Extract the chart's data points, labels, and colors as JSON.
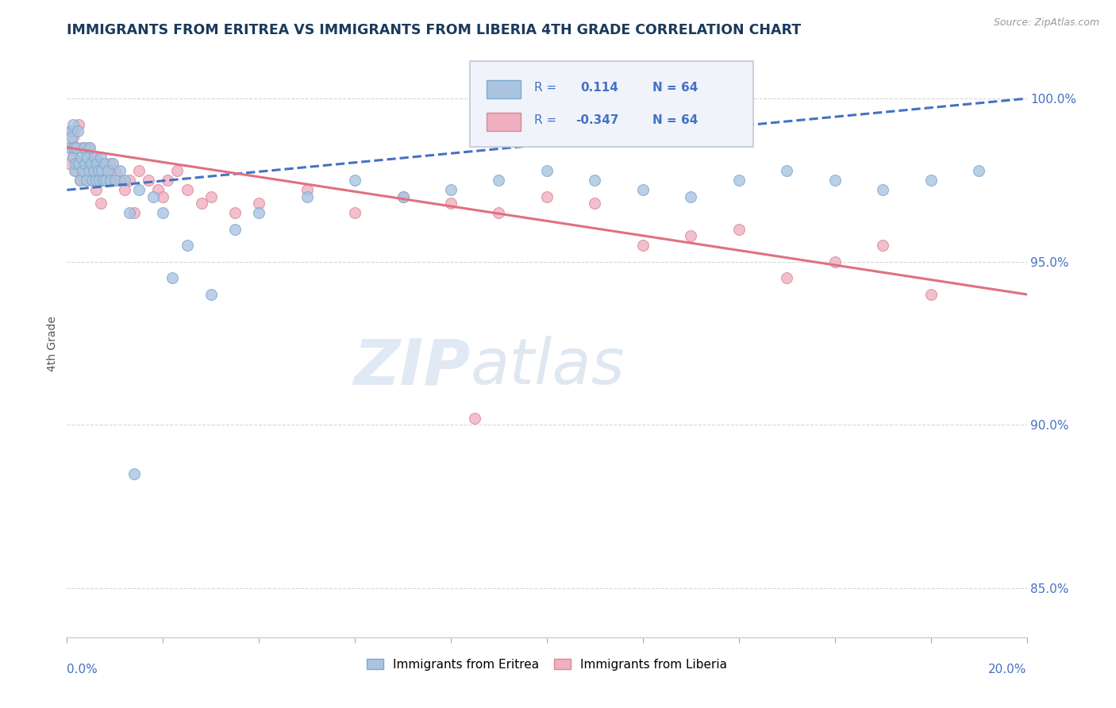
{
  "title": "IMMIGRANTS FROM ERITREA VS IMMIGRANTS FROM LIBERIA 4TH GRADE CORRELATION CHART",
  "source": "Source: ZipAtlas.com",
  "ylabel": "4th Grade",
  "xlim": [
    0.0,
    20.0
  ],
  "ylim": [
    83.5,
    101.5
  ],
  "yticks": [
    85.0,
    90.0,
    95.0,
    100.0
  ],
  "eritrea_color": "#aac4e0",
  "eritrea_edge": "#7aaad0",
  "liberia_color": "#f0b0c0",
  "liberia_edge": "#d88898",
  "trendline_eritrea_color": "#4472c4",
  "trendline_liberia_color": "#e07080",
  "background_color": "#ffffff",
  "grid_color": "#d8d8d8",
  "title_color": "#1a3a5c",
  "axis_label_color": "#4472c4",
  "legend_box_color": "#e8eef8",
  "legend_border_color": "#c0c8d8",
  "eritrea_scatter_x": [
    0.05,
    0.08,
    0.1,
    0.12,
    0.13,
    0.15,
    0.16,
    0.18,
    0.2,
    0.22,
    0.25,
    0.27,
    0.3,
    0.32,
    0.35,
    0.38,
    0.4,
    0.42,
    0.45,
    0.48,
    0.5,
    0.52,
    0.55,
    0.58,
    0.6,
    0.62,
    0.65,
    0.68,
    0.7,
    0.72,
    0.75,
    0.78,
    0.8,
    0.85,
    0.9,
    0.95,
    1.0,
    1.1,
    1.2,
    1.3,
    1.5,
    1.8,
    2.0,
    2.2,
    2.5,
    3.0,
    3.5,
    4.0,
    5.0,
    6.0,
    7.0,
    8.0,
    9.0,
    10.0,
    11.0,
    12.0,
    13.0,
    14.0,
    15.0,
    16.0,
    17.0,
    18.0,
    19.0,
    1.4
  ],
  "eritrea_scatter_y": [
    98.5,
    99.0,
    98.8,
    98.2,
    99.2,
    98.5,
    97.8,
    98.0,
    98.5,
    99.0,
    98.0,
    97.5,
    98.2,
    97.8,
    98.5,
    98.0,
    97.5,
    98.2,
    97.8,
    98.5,
    98.0,
    97.5,
    97.8,
    98.2,
    97.5,
    98.0,
    97.8,
    97.5,
    98.2,
    97.8,
    97.5,
    98.0,
    97.5,
    97.8,
    97.5,
    98.0,
    97.5,
    97.8,
    97.5,
    96.5,
    97.2,
    97.0,
    96.5,
    94.5,
    95.5,
    94.0,
    96.0,
    96.5,
    97.0,
    97.5,
    97.0,
    97.2,
    97.5,
    97.8,
    97.5,
    97.2,
    97.0,
    97.5,
    97.8,
    97.5,
    97.2,
    97.5,
    97.8,
    88.5
  ],
  "liberia_scatter_x": [
    0.05,
    0.08,
    0.1,
    0.12,
    0.13,
    0.15,
    0.16,
    0.18,
    0.2,
    0.22,
    0.25,
    0.27,
    0.3,
    0.32,
    0.35,
    0.38,
    0.4,
    0.42,
    0.45,
    0.48,
    0.5,
    0.55,
    0.6,
    0.65,
    0.7,
    0.75,
    0.8,
    0.85,
    0.9,
    0.95,
    1.0,
    1.1,
    1.2,
    1.3,
    1.5,
    1.7,
    1.9,
    2.1,
    2.3,
    2.5,
    2.8,
    3.0,
    3.5,
    4.0,
    5.0,
    6.0,
    7.0,
    8.0,
    9.0,
    10.0,
    11.0,
    12.0,
    13.0,
    14.0,
    15.0,
    16.0,
    17.0,
    18.0,
    0.6,
    0.7,
    0.8,
    1.4,
    2.0,
    8.5
  ],
  "liberia_scatter_y": [
    98.0,
    98.5,
    99.0,
    98.8,
    98.2,
    99.0,
    98.5,
    97.8,
    98.5,
    98.0,
    99.2,
    97.5,
    98.0,
    98.5,
    97.8,
    98.2,
    97.5,
    98.0,
    98.5,
    97.8,
    98.0,
    97.5,
    98.2,
    97.8,
    97.5,
    98.0,
    97.8,
    97.5,
    98.0,
    97.5,
    97.8,
    97.5,
    97.2,
    97.5,
    97.8,
    97.5,
    97.2,
    97.5,
    97.8,
    97.2,
    96.8,
    97.0,
    96.5,
    96.8,
    97.2,
    96.5,
    97.0,
    96.8,
    96.5,
    97.0,
    96.8,
    95.5,
    95.8,
    96.0,
    94.5,
    95.0,
    95.5,
    94.0,
    97.2,
    96.8,
    97.5,
    96.5,
    97.0,
    90.2
  ],
  "trendline_eritrea_x0": 0.0,
  "trendline_eritrea_y0": 97.2,
  "trendline_eritrea_x1": 20.0,
  "trendline_eritrea_y1": 100.0,
  "trendline_liberia_x0": 0.0,
  "trendline_liberia_y0": 98.5,
  "trendline_liberia_x1": 20.0,
  "trendline_liberia_y1": 94.0
}
